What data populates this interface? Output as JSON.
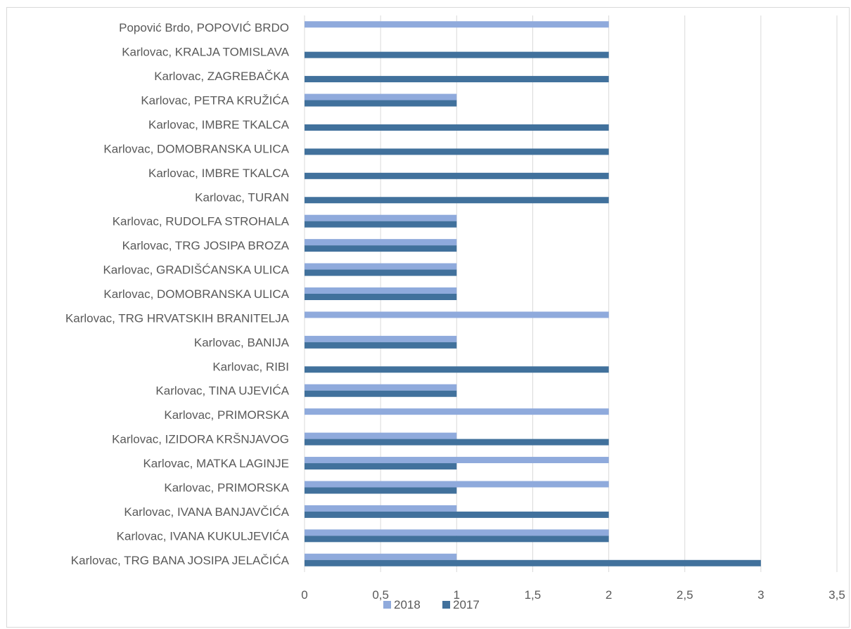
{
  "chart_data": {
    "type": "bar",
    "orientation": "horizontal",
    "categories": [
      "Karlovac, TRG BANA JOSIPA JELAČIĆA",
      "Karlovac, IVANA KUKULJEVIĆA",
      "Karlovac, IVANA BANJAVČIĆA",
      "Karlovac, PRIMORSKA",
      "Karlovac, MATKA LAGINJE",
      "Karlovac, IZIDORA KRŠNJAVOG",
      "Karlovac, PRIMORSKA",
      "Karlovac, TINA UJEVIĆA",
      "Karlovac, RIBI",
      "Karlovac, BANIJA",
      "Karlovac, TRG HRVATSKIH BRANITELJA",
      "Karlovac, DOMOBRANSKA ULICA",
      "Karlovac, GRADIŠĆANSKA ULICA",
      "Karlovac, TRG JOSIPA BROZA",
      "Karlovac, RUDOLFA STROHALA",
      "Karlovac, TURAN",
      "Karlovac, IMBRE TKALCA",
      "Karlovac, DOMOBRANSKA ULICA",
      "Karlovac, IMBRE TKALCA",
      "Karlovac, PETRA KRUŽIĆA",
      "Karlovac, ZAGREBAČKA",
      "Karlovac, KRALJA TOMISLAVA",
      "Popović Brdo, POPOVIĆ BRDO"
    ],
    "series": [
      {
        "name": "2018",
        "color": "#8faadc",
        "values": [
          1,
          2,
          1,
          2,
          2,
          1,
          2,
          1,
          0,
          1,
          2,
          1,
          1,
          1,
          1,
          0,
          0,
          0,
          0,
          1,
          0,
          0,
          2
        ]
      },
      {
        "name": "2017",
        "color": "#41719c",
        "values": [
          3,
          2,
          2,
          1,
          1,
          2,
          0,
          1,
          2,
          1,
          0,
          1,
          1,
          1,
          1,
          2,
          2,
          2,
          2,
          1,
          2,
          2,
          0
        ]
      }
    ],
    "xlim": [
      0,
      3.5
    ],
    "xticks": [
      "0",
      "0,5",
      "1",
      "1,5",
      "2",
      "2,5",
      "3",
      "3,5"
    ],
    "grid": true,
    "legend": "bottom"
  }
}
